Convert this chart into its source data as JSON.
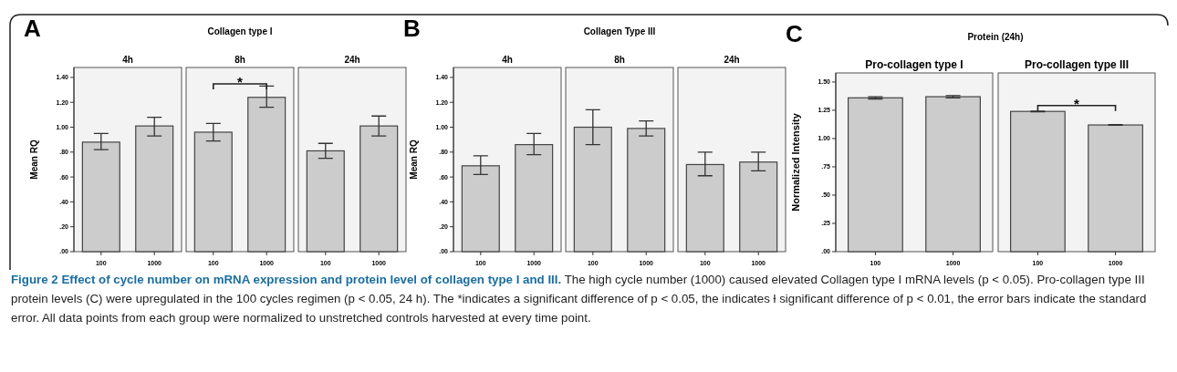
{
  "chart_data": [
    {
      "type": "bar",
      "title": "4h",
      "ylabel": "Mean RQ",
      "categories": [
        "100",
        "1000"
      ],
      "values": [
        0.88,
        1.01
      ],
      "errors": [
        [
          0.82,
          0.95
        ],
        [
          0.93,
          1.08
        ]
      ],
      "color": "#cccccc",
      "ylim": [
        0,
        1.48
      ],
      "yticks": [
        {
          "value": 0,
          "label": ".00"
        },
        {
          "value": 0.2,
          "label": ".20"
        },
        {
          "value": 0.4,
          "label": ".40"
        },
        {
          "value": 0.6,
          "label": ".60"
        },
        {
          "value": 0.8,
          "label": ".80"
        },
        {
          "value": 1.0,
          "label": "1.00"
        },
        {
          "value": 1.2,
          "label": "1.20"
        },
        {
          "value": 1.4,
          "label": "1.40"
        }
      ],
      "grid": false,
      "annotations": [
        "A",
        "Collagen type I",
        "Figure 2 Effect of cycle number on mRNA expression and protein level of collagen type I and III.",
        "The high cycle number (1000) caused elevated Collagen type I mRNA levels (p < 0.05). Pro-collagen type III protein levels (C) were upregulated in the 100 cycles regimen (p < 0.05, 24 h). The *indicates a significant difference of p < 0.05, the indicates ƚ significant difference of p < 0.01, the error bars indicate the standard error. All data points from each group were normalized to unstretched controls harvested at every time point."
      ]
    },
    {
      "type": "bar",
      "title": "8h",
      "categories": [
        "100",
        "1000"
      ],
      "values": [
        0.96,
        1.24
      ],
      "errors": [
        [
          0.89,
          1.03
        ],
        [
          1.16,
          1.33
        ]
      ],
      "color": "#cccccc",
      "ylim": [
        0,
        1.48
      ],
      "tick_labels": "x",
      "grid": false,
      "annotations": [
        "*"
      ]
    },
    {
      "type": "bar",
      "title": "24h",
      "categories": [
        "100",
        "1000"
      ],
      "values": [
        0.81,
        1.01
      ],
      "errors": [
        [
          0.75,
          0.87
        ],
        [
          0.93,
          1.09
        ]
      ],
      "color": "#cccccc",
      "ylim": [
        0,
        1.48
      ],
      "tick_labels": "x",
      "grid": false
    },
    {
      "type": "bar",
      "title": "4h",
      "ylabel": "Mean RQ",
      "categories": [
        "100",
        "1000"
      ],
      "values": [
        0.69,
        0.86
      ],
      "errors": [
        [
          0.62,
          0.77
        ],
        [
          0.78,
          0.95
        ]
      ],
      "color": "#cccccc",
      "ylim": [
        0,
        1.48
      ],
      "yticks": [
        {
          "value": 0,
          "label": ".00"
        },
        {
          "value": 0.2,
          "label": ".20"
        },
        {
          "value": 0.4,
          "label": ".40"
        },
        {
          "value": 0.6,
          "label": ".60"
        },
        {
          "value": 0.8,
          "label": ".80"
        },
        {
          "value": 1.0,
          "label": "1.00"
        },
        {
          "value": 1.2,
          "label": "1.20"
        },
        {
          "value": 1.4,
          "label": "1.40"
        }
      ],
      "grid": false,
      "annotations": [
        "B",
        "Collagen Type III"
      ]
    },
    {
      "type": "bar",
      "title": "8h",
      "categories": [
        "100",
        "1000"
      ],
      "values": [
        1.0,
        0.99
      ],
      "errors": [
        [
          0.86,
          1.14
        ],
        [
          0.93,
          1.05
        ]
      ],
      "color": "#cccccc",
      "ylim": [
        0,
        1.48
      ],
      "tick_labels": "x",
      "grid": false
    },
    {
      "type": "bar",
      "title": "24h",
      "categories": [
        "100",
        "1000"
      ],
      "values": [
        0.7,
        0.72
      ],
      "errors": [
        [
          0.61,
          0.8
        ],
        [
          0.65,
          0.8
        ]
      ],
      "color": "#cccccc",
      "ylim": [
        0,
        1.48
      ],
      "tick_labels": "x",
      "grid": false
    },
    {
      "type": "bar",
      "title": "Pro-collagen type I",
      "ylabel": "Normalized Intensity",
      "categories": [
        "100",
        "1000"
      ],
      "values": [
        1.36,
        1.37
      ],
      "errors": [
        0.01,
        0.01
      ],
      "color": "#cccccc",
      "ylim": [
        0,
        1.58
      ],
      "yticks": [
        {
          "value": 0,
          "label": ".00"
        },
        {
          "value": 0.25,
          "label": ".25"
        },
        {
          "value": 0.5,
          "label": ".50"
        },
        {
          "value": 0.75,
          "label": ".75"
        },
        {
          "value": 1.0,
          "label": "1.00"
        },
        {
          "value": 1.25,
          "label": "1.25"
        },
        {
          "value": 1.5,
          "label": "1.50"
        }
      ],
      "grid": false,
      "annotations": [
        "C",
        "Protein (24h)"
      ]
    },
    {
      "type": "bar",
      "title": "Pro-collagen type III",
      "categories": [
        "100",
        "1000"
      ],
      "values": [
        1.24,
        1.12
      ],
      "errors": [
        0.003,
        0.003
      ],
      "color": "#cccccc",
      "ylim": [
        0,
        1.58
      ],
      "tick_labels": "x",
      "grid": false,
      "annotations": [
        "*"
      ]
    }
  ]
}
